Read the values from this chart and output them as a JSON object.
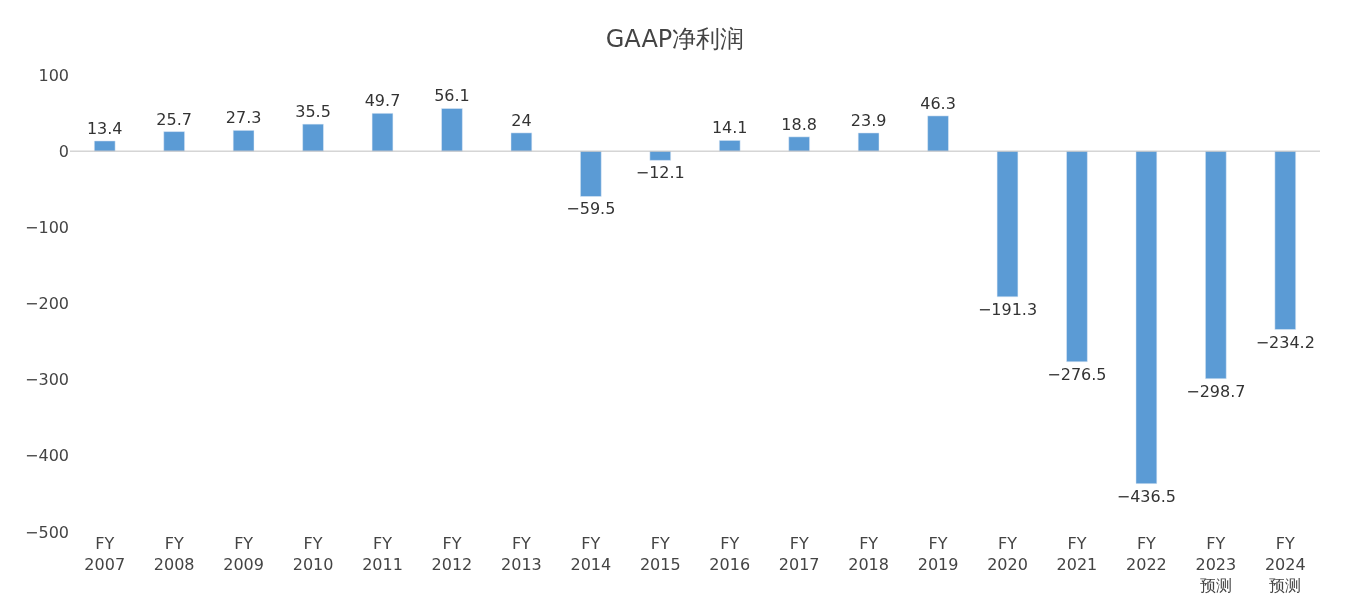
{
  "chart_data": {
    "type": "bar",
    "title": "GAAP净利润",
    "categories": [
      "FY 2007",
      "FY 2008",
      "FY 2009",
      "FY 2010",
      "FY 2011",
      "FY 2012",
      "FY 2013",
      "FY 2014",
      "FY 2015",
      "FY 2016",
      "FY 2017",
      "FY 2018",
      "FY 2019",
      "FY 2020",
      "FY 2021",
      "FY 2022",
      "FY 2023 预测",
      "FY 2024 预测"
    ],
    "values": [
      13.4,
      25.7,
      27.3,
      35.5,
      49.7,
      56.1,
      24,
      -59.5,
      -12.1,
      14.1,
      18.8,
      23.9,
      46.3,
      -191.3,
      -276.5,
      -436.5,
      -298.7,
      -234.2
    ],
    "value_labels": [
      "13.4",
      "25.7",
      "27.3",
      "35.5",
      "49.7",
      "56.1",
      "24",
      "−59.5",
      "−12.1",
      "14.1",
      "18.8",
      "23.9",
      "46.3",
      "−191.3",
      "−276.5",
      "−436.5",
      "−298.7",
      "−234.2"
    ],
    "color": "#5b9bd5",
    "ylim": [
      -500,
      100
    ],
    "yticks": [
      100,
      0,
      {
        "value": -100,
        "label": "−100"
      },
      {
        "value": -200,
        "label": "−200"
      },
      {
        "value": -300,
        "label": "−300"
      },
      {
        "value": -400,
        "label": "−400"
      },
      {
        "value": -500,
        "label": "−500"
      }
    ],
    "ref_lines": [
      {
        "axis": "y",
        "value": 0,
        "color": "#bfbfbf"
      }
    ],
    "legend": false
  }
}
